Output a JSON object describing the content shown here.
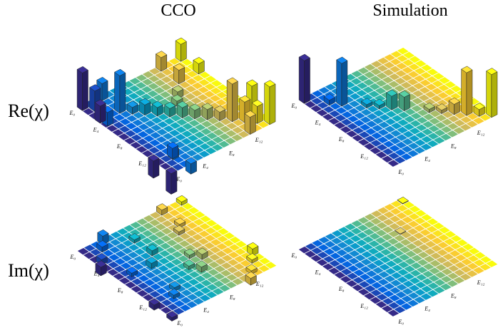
{
  "column_titles": [
    "CCO",
    "Simulation"
  ],
  "row_labels": [
    "Re(χ)",
    "Im(χ)"
  ],
  "chart_data": [
    {
      "type": "bar3d",
      "colormap": "parula",
      "xlim": [
        0,
        16
      ],
      "ylim": [
        0,
        16
      ],
      "xticks": [
        {
          "value": 0,
          "label": "E₀"
        },
        {
          "value": 4,
          "label": "E₄"
        },
        {
          "value": 8,
          "label": "E₈"
        },
        {
          "value": 12,
          "label": "E₁₂"
        }
      ],
      "yticks": [
        {
          "value": 0,
          "label": "E₀"
        },
        {
          "value": 4,
          "label": "E₄"
        },
        {
          "value": 8,
          "label": "E₈"
        },
        {
          "value": 12,
          "label": "E₁₂"
        }
      ],
      "bars": [
        {
          "row": 0,
          "col": 0,
          "value": 0.22
        },
        {
          "row": 1,
          "col": 1,
          "value": 0.12
        },
        {
          "row": 2,
          "col": 2,
          "value": -0.08
        },
        {
          "row": 3,
          "col": 3,
          "value": 0.22
        },
        {
          "row": 0,
          "col": 3,
          "value": 0.1
        },
        {
          "row": 3,
          "col": 0,
          "value": 0.1
        },
        {
          "row": 4,
          "col": 4,
          "value": 0.04
        },
        {
          "row": 5,
          "col": 5,
          "value": 0.06
        },
        {
          "row": 6,
          "col": 6,
          "value": 0.05
        },
        {
          "row": 7,
          "col": 7,
          "value": 0.05
        },
        {
          "row": 8,
          "col": 8,
          "value": 0.06
        },
        {
          "row": 9,
          "col": 9,
          "value": 0.05
        },
        {
          "row": 10,
          "col": 10,
          "value": 0.06
        },
        {
          "row": 11,
          "col": 11,
          "value": 0.05
        },
        {
          "row": 12,
          "col": 12,
          "value": 0.22
        },
        {
          "row": 13,
          "col": 13,
          "value": 0.12
        },
        {
          "row": 14,
          "col": 14,
          "value": 0.1
        },
        {
          "row": 15,
          "col": 15,
          "value": 0.22
        },
        {
          "row": 12,
          "col": 15,
          "value": 0.15
        },
        {
          "row": 15,
          "col": 12,
          "value": 0.1
        },
        {
          "row": 0,
          "col": 12,
          "value": 0.08
        },
        {
          "row": 0,
          "col": 15,
          "value": 0.1
        },
        {
          "row": 3,
          "col": 12,
          "value": 0.08
        },
        {
          "row": 3,
          "col": 15,
          "value": 0.06
        },
        {
          "row": 12,
          "col": 0,
          "value": -0.1
        },
        {
          "row": 15,
          "col": 0,
          "value": -0.12
        },
        {
          "row": 15,
          "col": 3,
          "value": -0.06
        },
        {
          "row": 12,
          "col": 3,
          "value": -0.05
        },
        {
          "row": 13,
          "col": 2,
          "value": 0.06
        },
        {
          "row": 6,
          "col": 9,
          "value": 0.03
        },
        {
          "row": 5,
          "col": 10,
          "value": 0.04
        }
      ]
    },
    {
      "type": "bar3d",
      "colormap": "parula",
      "xlim": [
        0,
        16
      ],
      "ylim": [
        0,
        16
      ],
      "xticks": [
        {
          "value": 0,
          "label": "E₀"
        },
        {
          "value": 4,
          "label": "E₄"
        },
        {
          "value": 8,
          "label": "E₈"
        },
        {
          "value": 12,
          "label": "E₁₂"
        }
      ],
      "yticks": [
        {
          "value": 0,
          "label": "E₀"
        },
        {
          "value": 4,
          "label": "E₄"
        },
        {
          "value": 8,
          "label": "E₈"
        },
        {
          "value": 12,
          "label": "E₁₂"
        }
      ],
      "bars": [
        {
          "row": 0,
          "col": 0,
          "value": 0.25
        },
        {
          "row": 2,
          "col": 2,
          "value": 0.03
        },
        {
          "row": 3,
          "col": 3,
          "value": 0.25
        },
        {
          "row": 5,
          "col": 5,
          "value": 0.02
        },
        {
          "row": 6,
          "col": 6,
          "value": 0.02
        },
        {
          "row": 7,
          "col": 7,
          "value": 0.08
        },
        {
          "row": 8,
          "col": 8,
          "value": 0.08
        },
        {
          "row": 10,
          "col": 10,
          "value": 0.02
        },
        {
          "row": 11,
          "col": 11,
          "value": 0.02
        },
        {
          "row": 12,
          "col": 12,
          "value": 0.06
        },
        {
          "row": 13,
          "col": 13,
          "value": 0.25
        },
        {
          "row": 14,
          "col": 14,
          "value": 0.04
        },
        {
          "row": 15,
          "col": 15,
          "value": 0.25
        }
      ]
    },
    {
      "type": "bar3d",
      "colormap": "parula",
      "xlim": [
        0,
        16
      ],
      "ylim": [
        0,
        16
      ],
      "xticks": [
        {
          "value": 0,
          "label": "E₀"
        },
        {
          "value": 4,
          "label": "E₄"
        },
        {
          "value": 8,
          "label": "E₈"
        },
        {
          "value": 12,
          "label": "E₁₂"
        }
      ],
      "yticks": [
        {
          "value": 0,
          "label": "E₀"
        },
        {
          "value": 4,
          "label": "E₄"
        },
        {
          "value": 8,
          "label": "E₈"
        },
        {
          "value": 12,
          "label": "E₁₂"
        }
      ],
      "bars": [
        {
          "row": 0,
          "col": 3,
          "value": 0.05
        },
        {
          "row": 3,
          "col": 0,
          "value": -0.05
        },
        {
          "row": 1,
          "col": 2,
          "value": 0.03
        },
        {
          "row": 2,
          "col": 1,
          "value": -0.03
        },
        {
          "row": 0,
          "col": 12,
          "value": 0.03
        },
        {
          "row": 12,
          "col": 0,
          "value": -0.03
        },
        {
          "row": 3,
          "col": 12,
          "value": 0.02
        },
        {
          "row": 12,
          "col": 3,
          "value": -0.02
        },
        {
          "row": 5,
          "col": 6,
          "value": 0.03
        },
        {
          "row": 6,
          "col": 5,
          "value": -0.03
        },
        {
          "row": 8,
          "col": 9,
          "value": 0.02
        },
        {
          "row": 9,
          "col": 8,
          "value": -0.02
        },
        {
          "row": 9,
          "col": 10,
          "value": 0.03
        },
        {
          "row": 10,
          "col": 9,
          "value": -0.03
        },
        {
          "row": 12,
          "col": 15,
          "value": 0.04
        },
        {
          "row": 15,
          "col": 12,
          "value": -0.04
        },
        {
          "row": 13,
          "col": 14,
          "value": 0.02
        },
        {
          "row": 14,
          "col": 13,
          "value": -0.02
        },
        {
          "row": 0,
          "col": 15,
          "value": 0.02
        },
        {
          "row": 15,
          "col": 0,
          "value": -0.02
        },
        {
          "row": 4,
          "col": 11,
          "value": 0.02
        },
        {
          "row": 11,
          "col": 4,
          "value": -0.02
        },
        {
          "row": 2,
          "col": 6,
          "value": 0.02
        },
        {
          "row": 6,
          "col": 2,
          "value": -0.02
        }
      ]
    },
    {
      "type": "bar3d",
      "colormap": "parula",
      "xlim": [
        0,
        16
      ],
      "ylim": [
        0,
        16
      ],
      "xticks": [
        {
          "value": 0,
          "label": "E₀"
        },
        {
          "value": 4,
          "label": "E₄"
        },
        {
          "value": 8,
          "label": "E₈"
        },
        {
          "value": 12,
          "label": "E₁₂"
        }
      ],
      "yticks": [
        {
          "value": 0,
          "label": "E₀"
        },
        {
          "value": 4,
          "label": "E₄"
        },
        {
          "value": 8,
          "label": "E₈"
        },
        {
          "value": 12,
          "label": "E₁₂"
        }
      ],
      "bars": [
        {
          "row": 0,
          "col": 15,
          "value": 0.003
        },
        {
          "row": 4,
          "col": 11,
          "value": -0.003
        }
      ]
    }
  ]
}
